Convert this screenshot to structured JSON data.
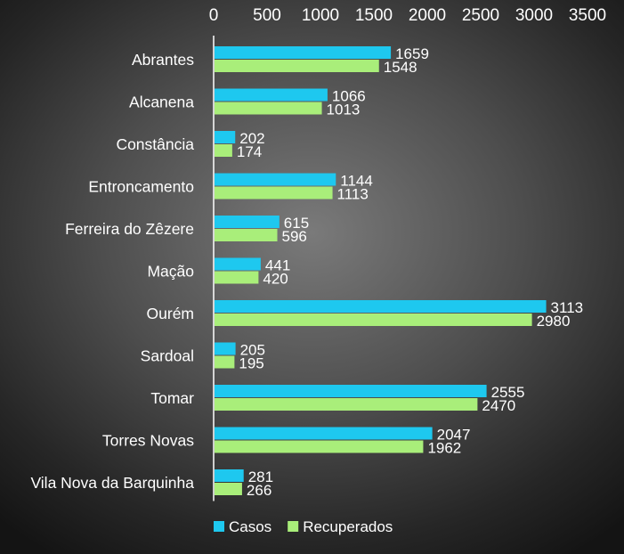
{
  "chart_data": {
    "type": "bar",
    "orientation": "horizontal",
    "categories": [
      "Abrantes",
      "Alcanena",
      "Constância",
      "Entroncamento",
      "Ferreira do Zêzere",
      "Mação",
      "Ourém",
      "Sardoal",
      "Tomar",
      "Torres Novas",
      "Vila Nova da Barquinha"
    ],
    "series": [
      {
        "name": "Casos",
        "color": "#1ec8ef",
        "values": [
          1659,
          1066,
          202,
          1144,
          615,
          441,
          3113,
          205,
          2555,
          2047,
          281
        ]
      },
      {
        "name": "Recuperados",
        "color": "#a9ee7a",
        "values": [
          1548,
          1013,
          174,
          1113,
          596,
          420,
          2980,
          195,
          2470,
          1962,
          266
        ]
      }
    ],
    "xlim": [
      0,
      3500
    ],
    "xticks": [
      0,
      500,
      1000,
      1500,
      2000,
      2500,
      3000,
      3500
    ],
    "axis_position": "top",
    "grid": false,
    "legend": "bottom-left",
    "data_labels": true
  }
}
